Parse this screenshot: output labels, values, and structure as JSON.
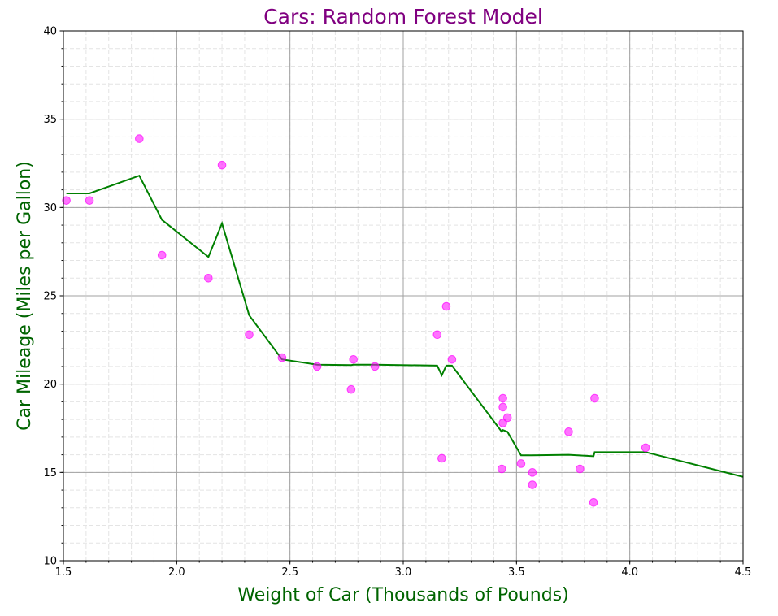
{
  "colors": {
    "title": "#800080",
    "axis_label": "#006400",
    "line": "#008000",
    "points": "#ff00ff",
    "major_grid": "#a0a0a0",
    "minor_grid": "#e4e4e4"
  },
  "chart_data": {
    "type": "scatter",
    "title": "Cars: Random Forest Model",
    "xlabel": "Weight of Car (Thousands of Pounds)",
    "ylabel": "Car Mileage (Miles per Gallon)",
    "xlim": [
      1.5,
      4.5
    ],
    "ylim": [
      10,
      40
    ],
    "x_ticks": [
      1.5,
      2.0,
      2.5,
      3.0,
      3.5,
      4.0,
      4.5
    ],
    "x_tick_labels": [
      "1.5",
      "2.0",
      "2.5",
      "3.0",
      "3.5",
      "4.0",
      "4.5"
    ],
    "y_ticks": [
      10,
      15,
      20,
      25,
      30,
      35,
      40
    ],
    "y_tick_labels": [
      "10",
      "15",
      "20",
      "25",
      "30",
      "35",
      "40"
    ],
    "grid": "major and minor",
    "series": [
      {
        "kind": "scatter",
        "points": [
          [
            1.513,
            30.4
          ],
          [
            1.615,
            30.4
          ],
          [
            1.835,
            33.9
          ],
          [
            1.935,
            27.3
          ],
          [
            2.14,
            26.0
          ],
          [
            2.2,
            32.4
          ],
          [
            2.32,
            22.8
          ],
          [
            2.465,
            21.5
          ],
          [
            2.62,
            21.0
          ],
          [
            2.77,
            19.7
          ],
          [
            2.78,
            21.4
          ],
          [
            2.875,
            21.0
          ],
          [
            3.15,
            22.8
          ],
          [
            3.17,
            15.8
          ],
          [
            3.19,
            24.4
          ],
          [
            3.215,
            21.4
          ],
          [
            3.435,
            15.2
          ],
          [
            3.44,
            19.2
          ],
          [
            3.44,
            18.7
          ],
          [
            3.44,
            17.8
          ],
          [
            3.46,
            18.1
          ],
          [
            3.52,
            15.5
          ],
          [
            3.57,
            15.0
          ],
          [
            3.57,
            14.3
          ],
          [
            3.73,
            17.3
          ],
          [
            3.78,
            15.2
          ],
          [
            3.84,
            13.3
          ],
          [
            3.845,
            19.2
          ],
          [
            4.07,
            16.4
          ]
        ]
      },
      {
        "kind": "line",
        "points": [
          [
            1.513,
            30.8
          ],
          [
            1.615,
            30.8
          ],
          [
            1.835,
            31.8
          ],
          [
            1.935,
            29.3
          ],
          [
            2.14,
            27.2
          ],
          [
            2.2,
            29.1
          ],
          [
            2.32,
            23.9
          ],
          [
            2.465,
            21.4
          ],
          [
            2.62,
            21.1
          ],
          [
            2.77,
            21.08
          ],
          [
            2.78,
            21.1
          ],
          [
            2.875,
            21.1
          ],
          [
            3.15,
            21.05
          ],
          [
            3.17,
            20.5
          ],
          [
            3.19,
            21.05
          ],
          [
            3.215,
            21.05
          ],
          [
            3.435,
            17.3
          ],
          [
            3.44,
            17.4
          ],
          [
            3.46,
            17.3
          ],
          [
            3.52,
            15.97
          ],
          [
            3.57,
            15.97
          ],
          [
            3.73,
            16.0
          ],
          [
            3.84,
            15.92
          ],
          [
            3.845,
            16.15
          ],
          [
            4.07,
            16.15
          ],
          [
            4.5,
            14.75
          ]
        ]
      }
    ]
  }
}
